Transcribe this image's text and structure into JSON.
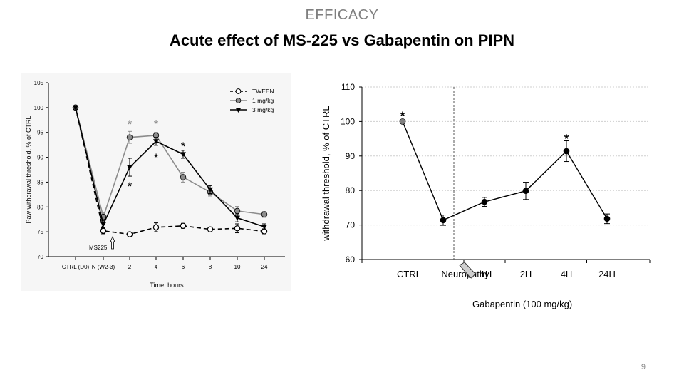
{
  "header": {
    "section": "EFFICACY",
    "title": "Acute effect of MS-225 vs Gabapentin on PIPN"
  },
  "page_number": "9",
  "chart_data": [
    {
      "type": "line",
      "xlabel": "Time, hours",
      "ylabel": "Paw withdrawal threshold, % of CTRL",
      "categories": [
        "CTRL (D0)",
        "N (W2-3)",
        "2",
        "4",
        "6",
        "8",
        "10",
        "24"
      ],
      "ylim": [
        70,
        105
      ],
      "yticks": [
        70,
        75,
        80,
        85,
        90,
        95,
        100,
        105
      ],
      "legend_position": "top-right",
      "grid": false,
      "series": [
        {
          "name": "TWEEN",
          "marker": "open-circle",
          "line": "dashed",
          "color": "#000000",
          "values": [
            100,
            75.2,
            74.5,
            75.9,
            76.2,
            75.5,
            75.7,
            75.1
          ],
          "errors": [
            0.3,
            0.6,
            0.4,
            0.9,
            0.5,
            0.3,
            0.9,
            0.5
          ]
        },
        {
          "name": "1 mg/kg",
          "marker": "filled-circle",
          "line": "solid",
          "color": "#8c8c8c",
          "values": [
            100,
            78.0,
            94.0,
            94.4,
            86.0,
            83.0,
            79.2,
            78.5
          ],
          "errors": [
            0.3,
            0.8,
            1.2,
            0.6,
            1.0,
            0.8,
            0.9,
            0.6
          ]
        },
        {
          "name": "3 mg/kg",
          "marker": "filled-triangle",
          "line": "solid",
          "color": "#000000",
          "values": [
            100,
            76.5,
            88.0,
            93.2,
            90.6,
            83.5,
            77.8,
            76.0
          ],
          "errors": [
            0.3,
            0.8,
            1.8,
            0.8,
            0.8,
            0.8,
            0.8,
            0.6
          ]
        }
      ],
      "annotations": [
        {
          "text": "*",
          "category": "2",
          "y": 97.0,
          "color": "#8c8c8c"
        },
        {
          "text": "*",
          "category": "4",
          "y": 97.0,
          "color": "#8c8c8c"
        },
        {
          "text": "*",
          "category": "6",
          "y": 92.5,
          "color": "#000000"
        },
        {
          "text": "*",
          "category": "4",
          "y": 90.2,
          "color": "#000000"
        },
        {
          "text": "*",
          "category": "2",
          "y": 84.5,
          "color": "#000000"
        }
      ],
      "arrow_label": {
        "text": "MS225",
        "category": "N (W2-3)"
      }
    },
    {
      "type": "line",
      "xlabel": "",
      "ylabel": "withdrawal threshold, % of CTRL",
      "categories": [
        "CTRL",
        "Neuropathy",
        "1H",
        "2H",
        "4H",
        "24H"
      ],
      "ylim": [
        60,
        110
      ],
      "yticks": [
        60,
        70,
        80,
        90,
        100,
        110
      ],
      "grid": true,
      "series": [
        {
          "values": [
            100,
            71.4,
            76.7,
            79.9,
            91.4,
            71.8
          ],
          "errors": [
            0,
            1.5,
            1.3,
            2.5,
            3.0,
            1.4
          ]
        }
      ],
      "point_colors": [
        "#808080",
        "#000000",
        "#000000",
        "#000000",
        "#000000",
        "#000000"
      ],
      "annotations": [
        {
          "text": "*",
          "category": "CTRL",
          "y": 102.2
        },
        {
          "text": "*",
          "category": "4H",
          "y": 95.5
        }
      ],
      "treatment_label": "Gabapentin (100 mg/kg)"
    }
  ]
}
